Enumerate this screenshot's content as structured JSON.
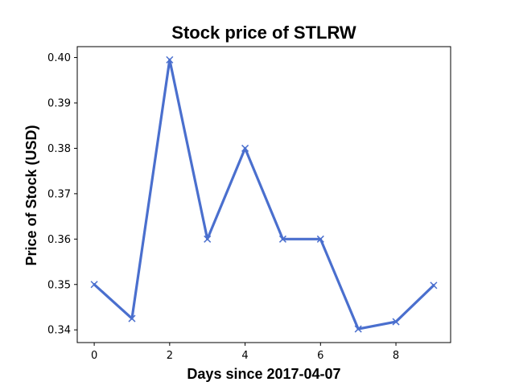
{
  "chart_data": {
    "type": "line",
    "title": "Stock price of STLRW",
    "xlabel": "Days since 2017-04-07",
    "ylabel": "Price of Stock (USD)",
    "x": [
      0,
      1,
      2,
      3,
      4,
      5,
      6,
      7,
      8,
      9
    ],
    "series": [
      {
        "values": [
          0.35,
          0.3425,
          0.3995,
          0.36,
          0.38,
          0.36,
          0.36,
          0.3402,
          0.3418,
          0.3498
        ],
        "color": "#4a6fce",
        "marker": "x"
      }
    ],
    "xticks": [
      0,
      2,
      4,
      6,
      8
    ],
    "yticks": [
      0.34,
      0.35,
      0.36,
      0.37,
      0.38,
      0.39,
      0.4
    ],
    "xtick_labels": [
      "0",
      "2",
      "4",
      "6",
      "8"
    ],
    "ytick_labels": [
      "0.34",
      "0.35",
      "0.36",
      "0.37",
      "0.38",
      "0.39",
      "0.40"
    ],
    "xlim": [
      -0.45,
      9.45
    ],
    "ylim": [
      0.3372,
      0.4024
    ],
    "grid": false,
    "legend": "none"
  }
}
